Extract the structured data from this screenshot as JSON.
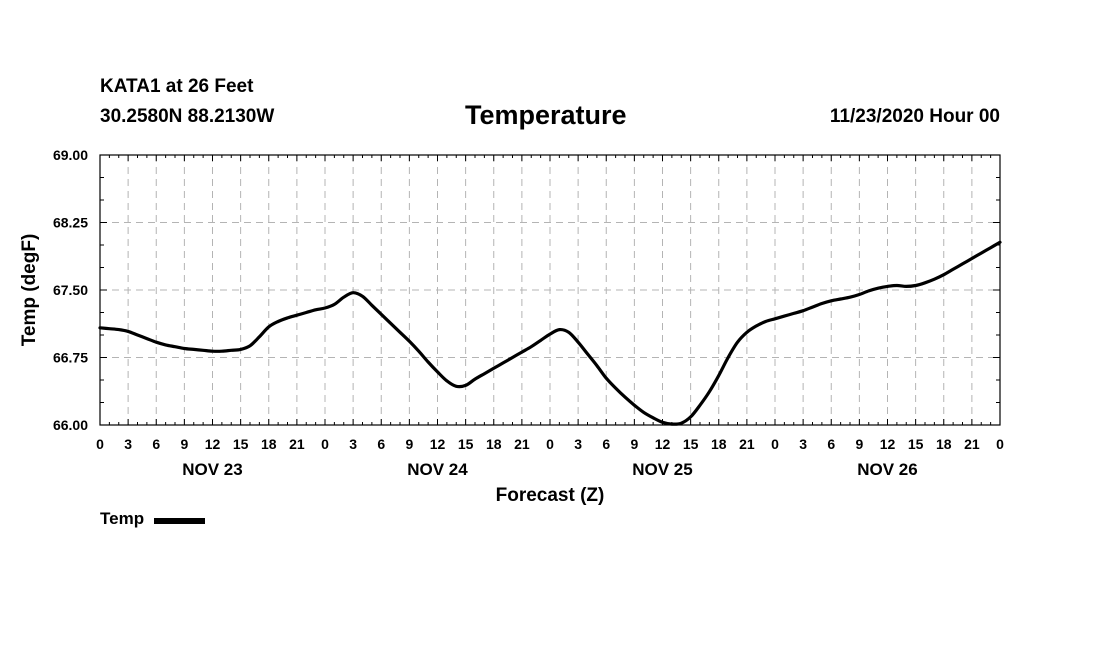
{
  "header": {
    "station": "KATA1 at 26 Feet",
    "coords": "30.2580N 88.2130W",
    "title": "Temperature",
    "run": "11/23/2020 Hour 00"
  },
  "legend": {
    "label": "Temp"
  },
  "chart_data": {
    "type": "line",
    "title": "Temperature",
    "xlabel": "Forecast (Z)",
    "ylabel": "Temp (degF)",
    "ylim": [
      66.0,
      69.0
    ],
    "yticks": [
      "66.00",
      "66.75",
      "67.50",
      "68.25",
      "69.00"
    ],
    "xlim": [
      0,
      96
    ],
    "grid": true,
    "xtick_labels": [
      "0",
      "3",
      "6",
      "9",
      "12",
      "15",
      "18",
      "21",
      "0",
      "3",
      "6",
      "9",
      "12",
      "15",
      "18",
      "21",
      "0",
      "3",
      "6",
      "9",
      "12",
      "15",
      "18",
      "21",
      "0",
      "3",
      "6",
      "9",
      "12",
      "15",
      "18",
      "21",
      "0"
    ],
    "day_labels": [
      {
        "label": "NOV 23",
        "hour": 12
      },
      {
        "label": "NOV 24",
        "hour": 36
      },
      {
        "label": "NOV 25",
        "hour": 60
      },
      {
        "label": "NOV 26",
        "hour": 84
      }
    ],
    "series": [
      {
        "name": "Temp",
        "x_hours": [
          0,
          1,
          2,
          3,
          4,
          5,
          6,
          7,
          8,
          9,
          10,
          11,
          12,
          13,
          14,
          15,
          16,
          17,
          18,
          19,
          20,
          21,
          22,
          23,
          24,
          25,
          26,
          27,
          28,
          29,
          30,
          31,
          32,
          33,
          34,
          35,
          36,
          37,
          38,
          39,
          40,
          41,
          42,
          43,
          44,
          45,
          46,
          47,
          48,
          49,
          50,
          51,
          52,
          53,
          54,
          55,
          56,
          57,
          58,
          59,
          60,
          61,
          62,
          63,
          64,
          65,
          66,
          67,
          68,
          69,
          70,
          71,
          72,
          73,
          74,
          75,
          76,
          77,
          78,
          79,
          80,
          81,
          82,
          83,
          84,
          85,
          86,
          87,
          88,
          89,
          90,
          91,
          92,
          93,
          94,
          95,
          96
        ],
        "values": [
          67.08,
          67.07,
          67.06,
          67.04,
          67.0,
          66.96,
          66.92,
          66.89,
          66.87,
          66.85,
          66.84,
          66.83,
          66.82,
          66.82,
          66.83,
          66.84,
          66.88,
          66.98,
          67.09,
          67.15,
          67.19,
          67.22,
          67.25,
          67.28,
          67.3,
          67.34,
          67.42,
          67.47,
          67.43,
          67.33,
          67.23,
          67.13,
          67.03,
          66.93,
          66.82,
          66.7,
          66.59,
          66.49,
          66.43,
          66.44,
          66.51,
          66.57,
          66.63,
          66.69,
          66.75,
          66.81,
          66.87,
          66.94,
          67.01,
          67.06,
          67.03,
          66.92,
          66.79,
          66.66,
          66.52,
          66.41,
          66.31,
          66.22,
          66.14,
          66.08,
          66.03,
          66.01,
          66.02,
          66.09,
          66.22,
          66.37,
          66.55,
          66.75,
          66.92,
          67.03,
          67.1,
          67.15,
          67.18,
          67.21,
          67.24,
          67.27,
          67.31,
          67.35,
          67.38,
          67.4,
          67.42,
          67.45,
          67.49,
          67.52,
          67.54,
          67.55,
          67.54,
          67.55,
          67.58,
          67.62,
          67.67,
          67.73,
          67.79,
          67.85,
          67.91,
          67.97,
          68.03
        ]
      }
    ]
  }
}
